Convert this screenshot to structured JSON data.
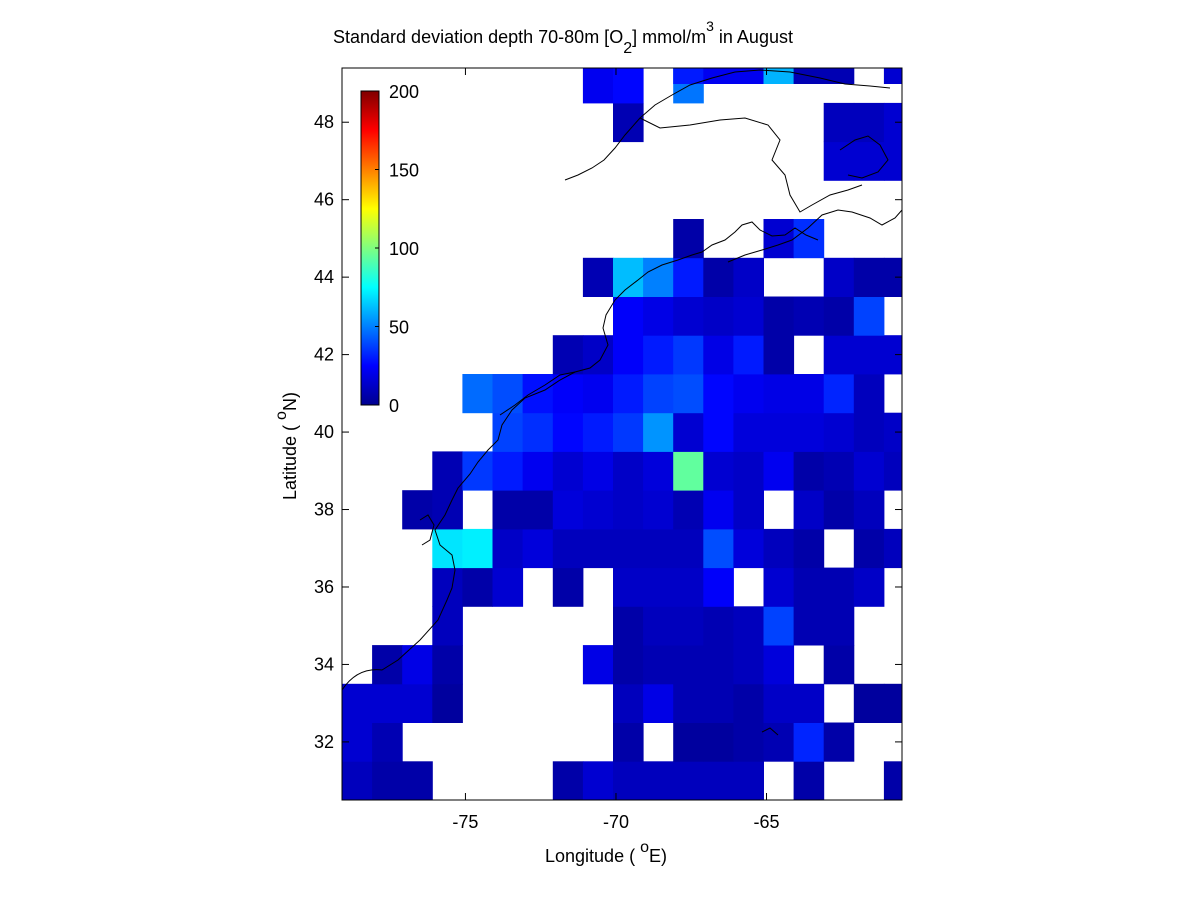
{
  "chart_data": {
    "type": "heatmap",
    "title": {
      "main": "Standard deviation depth 70-80m [O",
      "sub": "2",
      "mid": "] mmol/m",
      "sup": "3",
      "tail": " in August"
    },
    "xlabel": {
      "pre": "Longitude ( ",
      "sup": "o",
      "post": "E)"
    },
    "ylabel": {
      "pre": "Latitude ( ",
      "sup": "o",
      "post": "N)"
    },
    "xlim": [
      -79.1,
      -60.5
    ],
    "ylim": [
      30.5,
      49.4
    ],
    "x_ticks": [
      -75,
      -70,
      -65
    ],
    "x_tick_labels": [
      "-75",
      "-70",
      "-65"
    ],
    "y_ticks": [
      32,
      34,
      36,
      38,
      40,
      42,
      44,
      46,
      48
    ],
    "y_tick_labels": [
      "32",
      "34",
      "36",
      "38",
      "40",
      "42",
      "44",
      "46",
      "48"
    ],
    "colorbar": {
      "colormap": "jet",
      "range": [
        0,
        200
      ],
      "ticks": [
        0,
        50,
        100,
        150,
        200
      ],
      "tick_labels": [
        "0",
        "50",
        "100",
        "150",
        "200"
      ]
    },
    "grid": false,
    "cell_size_deg": 1,
    "cell_origin": {
      "lon": -79.1,
      "lat": 30.5
    },
    "cells": [
      {
        "lon": -79.1,
        "lat": 30.5,
        "v": 12
      },
      {
        "lon": -78.1,
        "lat": 30.5,
        "v": 8
      },
      {
        "lon": -77.1,
        "lat": 30.5,
        "v": 8
      },
      {
        "lon": -72.1,
        "lat": 30.5,
        "v": 8
      },
      {
        "lon": -71.1,
        "lat": 30.5,
        "v": 16
      },
      {
        "lon": -70.1,
        "lat": 30.5,
        "v": 12
      },
      {
        "lon": -69.1,
        "lat": 30.5,
        "v": 12
      },
      {
        "lon": -68.1,
        "lat": 30.5,
        "v": 12
      },
      {
        "lon": -67.1,
        "lat": 30.5,
        "v": 12
      },
      {
        "lon": -66.1,
        "lat": 30.5,
        "v": 12
      },
      {
        "lon": -64.1,
        "lat": 30.5,
        "v": 8
      },
      {
        "lon": -61.1,
        "lat": 30.5,
        "v": 8
      },
      {
        "lon": -79.1,
        "lat": 31.5,
        "v": 16
      },
      {
        "lon": -78.1,
        "lat": 31.5,
        "v": 10
      },
      {
        "lon": -70.1,
        "lat": 31.5,
        "v": 8
      },
      {
        "lon": -68.1,
        "lat": 31.5,
        "v": 6
      },
      {
        "lon": -67.1,
        "lat": 31.5,
        "v": 6
      },
      {
        "lon": -66.1,
        "lat": 31.5,
        "v": 8
      },
      {
        "lon": -65.1,
        "lat": 31.5,
        "v": 10
      },
      {
        "lon": -64.1,
        "lat": 31.5,
        "v": 32
      },
      {
        "lon": -63.1,
        "lat": 31.5,
        "v": 8
      },
      {
        "lon": -79.1,
        "lat": 32.5,
        "v": 16
      },
      {
        "lon": -78.1,
        "lat": 32.5,
        "v": 16
      },
      {
        "lon": -77.1,
        "lat": 32.5,
        "v": 16
      },
      {
        "lon": -76.1,
        "lat": 32.5,
        "v": 6
      },
      {
        "lon": -70.1,
        "lat": 32.5,
        "v": 12
      },
      {
        "lon": -69.1,
        "lat": 32.5,
        "v": 20
      },
      {
        "lon": -68.1,
        "lat": 32.5,
        "v": 10
      },
      {
        "lon": -67.1,
        "lat": 32.5,
        "v": 10
      },
      {
        "lon": -66.1,
        "lat": 32.5,
        "v": 8
      },
      {
        "lon": -65.1,
        "lat": 32.5,
        "v": 14
      },
      {
        "lon": -64.1,
        "lat": 32.5,
        "v": 14
      },
      {
        "lon": -62.1,
        "lat": 32.5,
        "v": 6
      },
      {
        "lon": -61.1,
        "lat": 32.5,
        "v": 6
      },
      {
        "lon": -78.1,
        "lat": 33.5,
        "v": 8
      },
      {
        "lon": -77.1,
        "lat": 33.5,
        "v": 20
      },
      {
        "lon": -76.1,
        "lat": 33.5,
        "v": 8
      },
      {
        "lon": -71.1,
        "lat": 33.5,
        "v": 20
      },
      {
        "lon": -70.1,
        "lat": 33.5,
        "v": 8
      },
      {
        "lon": -69.1,
        "lat": 33.5,
        "v": 10
      },
      {
        "lon": -68.1,
        "lat": 33.5,
        "v": 10
      },
      {
        "lon": -67.1,
        "lat": 33.5,
        "v": 10
      },
      {
        "lon": -66.1,
        "lat": 33.5,
        "v": 12
      },
      {
        "lon": -65.1,
        "lat": 33.5,
        "v": 18
      },
      {
        "lon": -63.1,
        "lat": 33.5,
        "v": 8
      },
      {
        "lon": -76.1,
        "lat": 34.5,
        "v": 12
      },
      {
        "lon": -70.1,
        "lat": 34.5,
        "v": 8
      },
      {
        "lon": -69.1,
        "lat": 34.5,
        "v": 12
      },
      {
        "lon": -68.1,
        "lat": 34.5,
        "v": 12
      },
      {
        "lon": -67.1,
        "lat": 34.5,
        "v": 10
      },
      {
        "lon": -66.1,
        "lat": 34.5,
        "v": 12
      },
      {
        "lon": -65.1,
        "lat": 34.5,
        "v": 38
      },
      {
        "lon": -64.1,
        "lat": 34.5,
        "v": 10
      },
      {
        "lon": -63.1,
        "lat": 34.5,
        "v": 10
      },
      {
        "lon": -76.1,
        "lat": 35.5,
        "v": 12
      },
      {
        "lon": -75.1,
        "lat": 35.5,
        "v": 8
      },
      {
        "lon": -74.1,
        "lat": 35.5,
        "v": 16
      },
      {
        "lon": -72.1,
        "lat": 35.5,
        "v": 8
      },
      {
        "lon": -70.1,
        "lat": 35.5,
        "v": 14
      },
      {
        "lon": -69.1,
        "lat": 35.5,
        "v": 14
      },
      {
        "lon": -68.1,
        "lat": 35.5,
        "v": 14
      },
      {
        "lon": -67.1,
        "lat": 35.5,
        "v": 24
      },
      {
        "lon": -65.1,
        "lat": 35.5,
        "v": 16
      },
      {
        "lon": -64.1,
        "lat": 35.5,
        "v": 10
      },
      {
        "lon": -63.1,
        "lat": 35.5,
        "v": 10
      },
      {
        "lon": -62.1,
        "lat": 35.5,
        "v": 14
      },
      {
        "lon": -60.5,
        "lat": 35.5,
        "v": 14
      },
      {
        "lon": -76.1,
        "lat": 36.5,
        "v": 70
      },
      {
        "lon": -75.1,
        "lat": 36.5,
        "v": 72
      },
      {
        "lon": -74.1,
        "lat": 36.5,
        "v": 14
      },
      {
        "lon": -73.1,
        "lat": 36.5,
        "v": 18
      },
      {
        "lon": -72.1,
        "lat": 36.5,
        "v": 12
      },
      {
        "lon": -71.1,
        "lat": 36.5,
        "v": 12
      },
      {
        "lon": -70.1,
        "lat": 36.5,
        "v": 12
      },
      {
        "lon": -69.1,
        "lat": 36.5,
        "v": 12
      },
      {
        "lon": -68.1,
        "lat": 36.5,
        "v": 12
      },
      {
        "lon": -67.1,
        "lat": 36.5,
        "v": 40
      },
      {
        "lon": -66.1,
        "lat": 36.5,
        "v": 18
      },
      {
        "lon": -65.1,
        "lat": 36.5,
        "v": 12
      },
      {
        "lon": -64.1,
        "lat": 36.5,
        "v": 8
      },
      {
        "lon": -62.1,
        "lat": 36.5,
        "v": 8
      },
      {
        "lon": -61.1,
        "lat": 36.5,
        "v": 12
      },
      {
        "lon": -60.5,
        "lat": 36.5,
        "v": 14
      },
      {
        "lon": -77.1,
        "lat": 37.5,
        "v": 8
      },
      {
        "lon": -76.1,
        "lat": 37.5,
        "v": 10
      },
      {
        "lon": -74.1,
        "lat": 37.5,
        "v": 8
      },
      {
        "lon": -73.1,
        "lat": 37.5,
        "v": 8
      },
      {
        "lon": -72.1,
        "lat": 37.5,
        "v": 18
      },
      {
        "lon": -71.1,
        "lat": 37.5,
        "v": 16
      },
      {
        "lon": -70.1,
        "lat": 37.5,
        "v": 14
      },
      {
        "lon": -69.1,
        "lat": 37.5,
        "v": 16
      },
      {
        "lon": -68.1,
        "lat": 37.5,
        "v": 10
      },
      {
        "lon": -67.1,
        "lat": 37.5,
        "v": 22
      },
      {
        "lon": -66.1,
        "lat": 37.5,
        "v": 14
      },
      {
        "lon": -64.1,
        "lat": 37.5,
        "v": 14
      },
      {
        "lon": -63.1,
        "lat": 37.5,
        "v": 8
      },
      {
        "lon": -62.1,
        "lat": 37.5,
        "v": 12
      },
      {
        "lon": -60.5,
        "lat": 37.5,
        "v": 18
      },
      {
        "lon": -76.1,
        "lat": 38.5,
        "v": 10
      },
      {
        "lon": -75.1,
        "lat": 38.5,
        "v": 36
      },
      {
        "lon": -74.1,
        "lat": 38.5,
        "v": 30
      },
      {
        "lon": -73.1,
        "lat": 38.5,
        "v": 22
      },
      {
        "lon": -72.1,
        "lat": 38.5,
        "v": 16
      },
      {
        "lon": -71.1,
        "lat": 38.5,
        "v": 20
      },
      {
        "lon": -70.1,
        "lat": 38.5,
        "v": 14
      },
      {
        "lon": -69.1,
        "lat": 38.5,
        "v": 18
      },
      {
        "lon": -68.1,
        "lat": 38.5,
        "v": 94
      },
      {
        "lon": -67.1,
        "lat": 38.5,
        "v": 16
      },
      {
        "lon": -66.1,
        "lat": 38.5,
        "v": 14
      },
      {
        "lon": -65.1,
        "lat": 38.5,
        "v": 22
      },
      {
        "lon": -64.1,
        "lat": 38.5,
        "v": 8
      },
      {
        "lon": -63.1,
        "lat": 38.5,
        "v": 10
      },
      {
        "lon": -62.1,
        "lat": 38.5,
        "v": 16
      },
      {
        "lon": -61.1,
        "lat": 38.5,
        "v": 12
      },
      {
        "lon": -74.1,
        "lat": 39.5,
        "v": 38
      },
      {
        "lon": -73.1,
        "lat": 39.5,
        "v": 34
      },
      {
        "lon": -72.1,
        "lat": 39.5,
        "v": 26
      },
      {
        "lon": -71.1,
        "lat": 39.5,
        "v": 30
      },
      {
        "lon": -70.1,
        "lat": 39.5,
        "v": 36
      },
      {
        "lon": -69.1,
        "lat": 39.5,
        "v": 54
      },
      {
        "lon": -68.1,
        "lat": 39.5,
        "v": 16
      },
      {
        "lon": -67.1,
        "lat": 39.5,
        "v": 26
      },
      {
        "lon": -66.1,
        "lat": 39.5,
        "v": 18
      },
      {
        "lon": -65.1,
        "lat": 39.5,
        "v": 18
      },
      {
        "lon": -64.1,
        "lat": 39.5,
        "v": 18
      },
      {
        "lon": -63.1,
        "lat": 39.5,
        "v": 16
      },
      {
        "lon": -62.1,
        "lat": 39.5,
        "v": 12
      },
      {
        "lon": -61.1,
        "lat": 39.5,
        "v": 14
      },
      {
        "lon": -75.1,
        "lat": 40.5,
        "v": 46
      },
      {
        "lon": -74.1,
        "lat": 40.5,
        "v": 40
      },
      {
        "lon": -73.1,
        "lat": 40.5,
        "v": 28
      },
      {
        "lon": -72.1,
        "lat": 40.5,
        "v": 24
      },
      {
        "lon": -71.1,
        "lat": 40.5,
        "v": 22
      },
      {
        "lon": -70.1,
        "lat": 40.5,
        "v": 30
      },
      {
        "lon": -69.1,
        "lat": 40.5,
        "v": 38
      },
      {
        "lon": -68.1,
        "lat": 40.5,
        "v": 40
      },
      {
        "lon": -67.1,
        "lat": 40.5,
        "v": 26
      },
      {
        "lon": -66.1,
        "lat": 40.5,
        "v": 22
      },
      {
        "lon": -65.1,
        "lat": 40.5,
        "v": 20
      },
      {
        "lon": -64.1,
        "lat": 40.5,
        "v": 20
      },
      {
        "lon": -63.1,
        "lat": 40.5,
        "v": 32
      },
      {
        "lon": -62.1,
        "lat": 40.5,
        "v": 12
      },
      {
        "lon": -60.5,
        "lat": 40.5,
        "v": 60
      },
      {
        "lon": -72.1,
        "lat": 41.5,
        "v": 10
      },
      {
        "lon": -71.1,
        "lat": 41.5,
        "v": 14
      },
      {
        "lon": -70.1,
        "lat": 41.5,
        "v": 24
      },
      {
        "lon": -69.1,
        "lat": 41.5,
        "v": 30
      },
      {
        "lon": -68.1,
        "lat": 41.5,
        "v": 36
      },
      {
        "lon": -67.1,
        "lat": 41.5,
        "v": 20
      },
      {
        "lon": -66.1,
        "lat": 41.5,
        "v": 30
      },
      {
        "lon": -65.1,
        "lat": 41.5,
        "v": 8
      },
      {
        "lon": -63.1,
        "lat": 41.5,
        "v": 16
      },
      {
        "lon": -62.1,
        "lat": 41.5,
        "v": 16
      },
      {
        "lon": -61.1,
        "lat": 41.5,
        "v": 16
      },
      {
        "lon": -70.1,
        "lat": 42.5,
        "v": 24
      },
      {
        "lon": -69.1,
        "lat": 42.5,
        "v": 20
      },
      {
        "lon": -68.1,
        "lat": 42.5,
        "v": 16
      },
      {
        "lon": -67.1,
        "lat": 42.5,
        "v": 14
      },
      {
        "lon": -66.1,
        "lat": 42.5,
        "v": 16
      },
      {
        "lon": -65.1,
        "lat": 42.5,
        "v": 8
      },
      {
        "lon": -64.1,
        "lat": 42.5,
        "v": 10
      },
      {
        "lon": -63.1,
        "lat": 42.5,
        "v": 8
      },
      {
        "lon": -62.1,
        "lat": 42.5,
        "v": 38
      },
      {
        "lon": -71.1,
        "lat": 43.5,
        "v": 10
      },
      {
        "lon": -70.1,
        "lat": 43.5,
        "v": 62
      },
      {
        "lon": -69.1,
        "lat": 43.5,
        "v": 50
      },
      {
        "lon": -68.1,
        "lat": 43.5,
        "v": 30
      },
      {
        "lon": -67.1,
        "lat": 43.5,
        "v": 8
      },
      {
        "lon": -66.1,
        "lat": 43.5,
        "v": 14
      },
      {
        "lon": -63.1,
        "lat": 43.5,
        "v": 14
      },
      {
        "lon": -62.1,
        "lat": 43.5,
        "v": 8
      },
      {
        "lon": -61.1,
        "lat": 43.5,
        "v": 8
      },
      {
        "lon": -68.1,
        "lat": 44.5,
        "v": 8
      },
      {
        "lon": -65.1,
        "lat": 44.5,
        "v": 16
      },
      {
        "lon": -64.1,
        "lat": 44.5,
        "v": 34
      },
      {
        "lon": -60.5,
        "lat": 45.5,
        "v": 8
      },
      {
        "lon": -63.1,
        "lat": 46.5,
        "v": 16
      },
      {
        "lon": -62.1,
        "lat": 46.5,
        "v": 16
      },
      {
        "lon": -61.1,
        "lat": 46.5,
        "v": 16
      },
      {
        "lon": -60.5,
        "lat": 46.5,
        "v": 10
      },
      {
        "lon": -70.1,
        "lat": 47.5,
        "v": 10
      },
      {
        "lon": -63.1,
        "lat": 47.5,
        "v": 12
      },
      {
        "lon": -62.1,
        "lat": 47.5,
        "v": 12
      },
      {
        "lon": -61.1,
        "lat": 47.5,
        "v": 16
      },
      {
        "lon": -60.5,
        "lat": 47.5,
        "v": 16
      },
      {
        "lon": -71.1,
        "lat": 48.5,
        "v": 22
      },
      {
        "lon": -70.1,
        "lat": 48.5,
        "v": 26
      },
      {
        "lon": -68.1,
        "lat": 48.5,
        "v": 48
      },
      {
        "lon": -60.5,
        "lat": 48.5,
        "v": 8
      },
      {
        "lon": -68.1,
        "lat": 49.0,
        "v": 30
      },
      {
        "lon": -67.1,
        "lat": 49.0,
        "v": 22
      },
      {
        "lon": -66.1,
        "lat": 49.0,
        "v": 22
      },
      {
        "lon": -65.1,
        "lat": 49.0,
        "v": 60
      },
      {
        "lon": -64.1,
        "lat": 49.0,
        "v": 10
      },
      {
        "lon": -63.1,
        "lat": 49.0,
        "v": 10
      },
      {
        "lon": -61.1,
        "lat": 49.0,
        "v": 16
      }
    ]
  }
}
